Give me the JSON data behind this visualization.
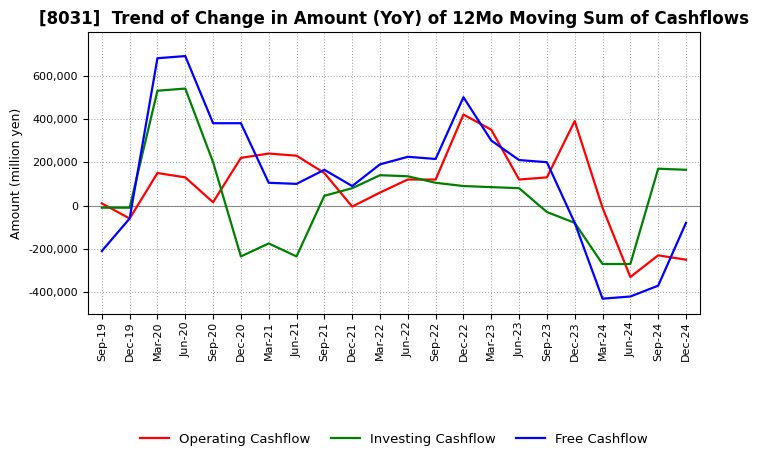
{
  "title": "[8031]  Trend of Change in Amount (YoY) of 12Mo Moving Sum of Cashflows",
  "ylabel": "Amount (million yen)",
  "labels": [
    "Sep-19",
    "Dec-19",
    "Mar-20",
    "Jun-20",
    "Sep-20",
    "Dec-20",
    "Mar-21",
    "Jun-21",
    "Sep-21",
    "Dec-21",
    "Mar-22",
    "Jun-22",
    "Sep-22",
    "Dec-22",
    "Mar-23",
    "Jun-23",
    "Sep-23",
    "Dec-23",
    "Mar-24",
    "Jun-24",
    "Sep-24",
    "Dec-24"
  ],
  "operating": [
    10000,
    -60000,
    150000,
    130000,
    15000,
    220000,
    240000,
    230000,
    150000,
    -5000,
    60000,
    120000,
    120000,
    420000,
    350000,
    120000,
    130000,
    390000,
    -10000,
    -330000,
    -230000,
    -250000
  ],
  "investing": [
    -10000,
    -10000,
    530000,
    540000,
    200000,
    -235000,
    -175000,
    -235000,
    45000,
    80000,
    140000,
    135000,
    105000,
    90000,
    85000,
    80000,
    -30000,
    -80000,
    -270000,
    -270000,
    170000,
    165000
  ],
  "free": [
    -210000,
    -60000,
    680000,
    690000,
    380000,
    380000,
    105000,
    100000,
    165000,
    90000,
    190000,
    225000,
    215000,
    500000,
    300000,
    210000,
    200000,
    -80000,
    -430000,
    -420000,
    -370000,
    -80000
  ],
  "operating_color": "#ff0000",
  "investing_color": "#008000",
  "free_color": "#0000ff",
  "ylim": [
    -500000,
    800000
  ],
  "yticks": [
    -400000,
    -200000,
    0,
    200000,
    400000,
    600000
  ],
  "background_color": "#ffffff",
  "grid_color": "#aaaaaa",
  "title_fontsize": 12,
  "axis_fontsize": 9,
  "tick_fontsize": 8,
  "legend_fontsize": 9.5
}
